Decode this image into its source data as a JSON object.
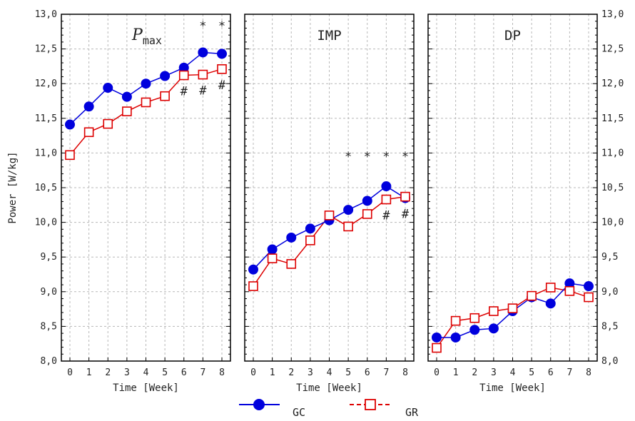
{
  "chart_data": {
    "type": "line",
    "ylabel": "Power [W/kg]",
    "ylim": [
      8.0,
      13.0
    ],
    "yticks": [
      "8,0",
      "8,5",
      "9,0",
      "9,5",
      "10,0",
      "10,5",
      "11,0",
      "11,5",
      "12,0",
      "12,5",
      "13,0"
    ],
    "yticks_right": true,
    "xlabel": "Time [Week]",
    "x": [
      0,
      1,
      2,
      3,
      4,
      5,
      6,
      7,
      8
    ],
    "grid": true,
    "legend_placement": "bottom-center",
    "colors": {
      "GC": "#0000dd",
      "GR": "#dd0000"
    },
    "panels": [
      {
        "title": "P",
        "title_subscript": "max",
        "series": [
          {
            "name": "GC",
            "values": [
              11.41,
              11.67,
              11.94,
              11.81,
              12.0,
              12.11,
              12.23,
              12.45,
              12.43
            ]
          },
          {
            "name": "GR",
            "values": [
              10.97,
              11.3,
              11.42,
              11.6,
              11.73,
              11.82,
              12.12,
              12.13,
              12.21
            ]
          }
        ],
        "star_weeks": [
          7,
          8
        ],
        "hash_weeks": [
          6,
          7,
          8
        ]
      },
      {
        "title": "IMP",
        "title_subscript": "",
        "series": [
          {
            "name": "GC",
            "values": [
              9.32,
              9.61,
              9.78,
              9.91,
              10.03,
              10.18,
              10.31,
              10.52,
              10.35
            ]
          },
          {
            "name": "GR",
            "values": [
              9.08,
              9.48,
              9.4,
              9.74,
              10.1,
              9.94,
              10.12,
              10.33,
              10.37
            ]
          }
        ],
        "star_weeks": [
          5,
          6,
          7,
          8
        ],
        "hash_weeks": [
          7,
          8
        ]
      },
      {
        "title": "DP",
        "title_subscript": "",
        "series": [
          {
            "name": "GC",
            "values": [
              8.34,
              8.34,
              8.45,
              8.47,
              8.72,
              8.92,
              8.83,
              9.12,
              9.08
            ]
          },
          {
            "name": "GR",
            "values": [
              8.19,
              8.58,
              8.62,
              8.72,
              8.76,
              8.94,
              9.06,
              9.01,
              8.92
            ]
          }
        ],
        "star_weeks": [],
        "hash_weeks": []
      }
    ],
    "star_symbol": "*",
    "hash_symbol": "#"
  }
}
